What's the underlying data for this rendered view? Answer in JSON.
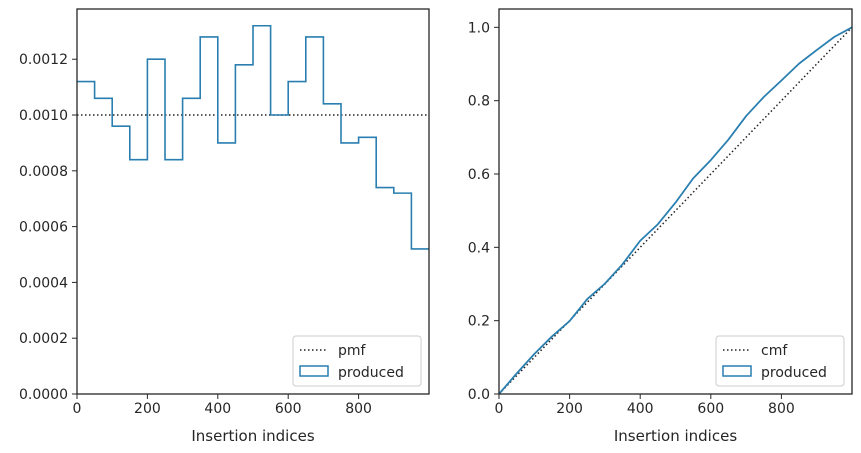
{
  "colors": {
    "series": "#2a7fb0",
    "reference": "#222222",
    "axes": "#262626",
    "legend_border": "#cccccc"
  },
  "chart_data": [
    {
      "type": "line",
      "subtype": "step-histogram",
      "xlabel": "Insertion indices",
      "ylabel": "",
      "xlim": [
        0,
        1000
      ],
      "ylim": [
        0,
        0.00138
      ],
      "xticks": [
        0,
        200,
        400,
        600,
        800
      ],
      "xtick_labels": [
        "0",
        "200",
        "400",
        "600",
        "800"
      ],
      "yticks": [
        0,
        0.0002,
        0.0004,
        0.0006,
        0.0008,
        0.001,
        0.0012
      ],
      "ytick_labels": [
        "0.0000",
        "0.0002",
        "0.0004",
        "0.0006",
        "0.0008",
        "0.0010",
        "0.0012"
      ],
      "legend_position": "bottom-right",
      "series": [
        {
          "name": "pmf",
          "style": "dotted",
          "x": [
            0,
            1000
          ],
          "y": [
            0.001,
            0.001
          ]
        },
        {
          "name": "produced",
          "style": "step",
          "bin_edges": [
            0,
            50,
            100,
            150,
            200,
            250,
            300,
            350,
            400,
            450,
            500,
            550,
            600,
            650,
            700,
            750,
            800,
            850,
            900,
            950,
            1000
          ],
          "values": [
            0.00112,
            0.00106,
            0.00096,
            0.00084,
            0.0012,
            0.00084,
            0.00106,
            0.00128,
            0.0009,
            0.00118,
            0.00132,
            0.001,
            0.00112,
            0.00128,
            0.00104,
            0.0009,
            0.00092,
            0.00074,
            0.00072,
            0.00052
          ]
        }
      ]
    },
    {
      "type": "line",
      "subtype": "cumulative",
      "xlabel": "Insertion indices",
      "ylabel": "",
      "xlim": [
        0,
        1000
      ],
      "ylim": [
        0,
        1.05
      ],
      "xticks": [
        0,
        200,
        400,
        600,
        800
      ],
      "xtick_labels": [
        "0",
        "200",
        "400",
        "600",
        "800"
      ],
      "yticks": [
        0,
        0.2,
        0.4,
        0.6,
        0.8,
        1.0
      ],
      "ytick_labels": [
        "0.0",
        "0.2",
        "0.4",
        "0.6",
        "0.8",
        "1.0"
      ],
      "legend_position": "bottom-right",
      "series": [
        {
          "name": "cmf",
          "style": "dotted",
          "x": [
            0,
            1000
          ],
          "y": [
            0,
            1.0
          ]
        },
        {
          "name": "produced",
          "style": "line",
          "x": [
            0,
            50,
            100,
            150,
            200,
            250,
            300,
            350,
            400,
            450,
            500,
            550,
            600,
            650,
            700,
            750,
            800,
            850,
            900,
            950,
            1000
          ],
          "y": [
            0,
            0.056,
            0.109,
            0.157,
            0.199,
            0.259,
            0.301,
            0.354,
            0.418,
            0.463,
            0.522,
            0.588,
            0.638,
            0.694,
            0.758,
            0.81,
            0.855,
            0.901,
            0.938,
            0.974,
            1.0
          ]
        }
      ]
    }
  ]
}
